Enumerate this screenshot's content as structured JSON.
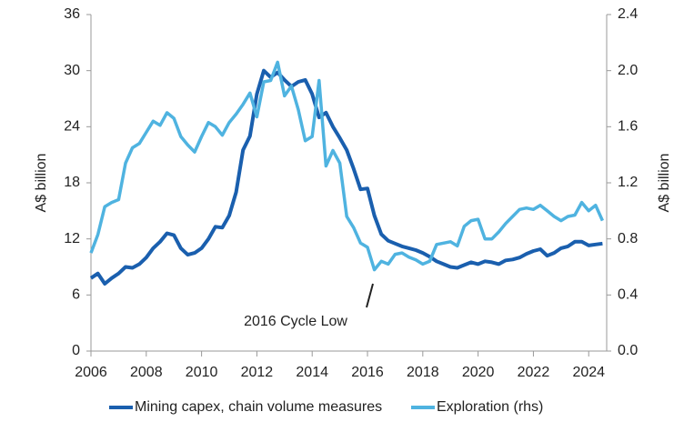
{
  "chart_data": {
    "type": "line",
    "y_label": "A$ billion",
    "y2_label": "A$ billion",
    "annotation": "2016 Cycle Low",
    "x": [
      2006,
      2006.25,
      2006.5,
      2006.75,
      2007,
      2007.25,
      2007.5,
      2007.75,
      2008,
      2008.25,
      2008.5,
      2008.75,
      2009,
      2009.25,
      2009.5,
      2009.75,
      2010,
      2010.25,
      2010.5,
      2010.75,
      2011,
      2011.25,
      2011.5,
      2011.75,
      2012,
      2012.25,
      2012.5,
      2012.75,
      2013,
      2013.25,
      2013.5,
      2013.75,
      2014,
      2014.25,
      2014.5,
      2014.75,
      2015,
      2015.25,
      2015.5,
      2015.75,
      2016,
      2016.25,
      2016.5,
      2016.75,
      2017,
      2017.25,
      2017.5,
      2017.75,
      2018,
      2018.25,
      2018.5,
      2018.75,
      2019,
      2019.25,
      2019.5,
      2019.75,
      2020,
      2020.25,
      2020.5,
      2020.75,
      2021,
      2021.25,
      2021.5,
      2021.75,
      2022,
      2022.25,
      2022.5,
      2022.75,
      2023,
      2023.25,
      2023.5,
      2023.75,
      2024,
      2024.25,
      2024.5
    ],
    "series": [
      {
        "name": "Mining capex, chain volume measures",
        "color": "#1a5fae",
        "values": [
          7.8,
          8.3,
          7.2,
          7.8,
          8.3,
          9.0,
          8.9,
          9.3,
          10.0,
          11.0,
          11.7,
          12.6,
          12.4,
          11.0,
          10.3,
          10.5,
          11.0,
          12.0,
          13.3,
          13.2,
          14.5,
          17.0,
          21.5,
          23.0,
          27.5,
          30.0,
          29.3,
          29.8,
          29.0,
          28.3,
          28.8,
          29.0,
          27.5,
          25.0,
          25.5,
          24.0,
          22.8,
          21.5,
          19.5,
          17.3,
          17.4,
          14.5,
          12.5,
          11.8,
          11.5,
          11.2,
          11.0,
          10.8,
          10.5,
          10.1,
          9.6,
          9.3,
          9.0,
          8.9,
          9.2,
          9.5,
          9.3,
          9.6,
          9.5,
          9.3,
          9.7,
          9.8,
          10.0,
          10.4,
          10.7,
          10.9,
          10.2,
          10.5,
          11.0,
          11.2,
          11.7,
          11.7,
          11.3,
          11.4,
          11.5
        ]
      },
      {
        "name": "Exploration (rhs)",
        "color": "#4fb3e0",
        "axis": "y2",
        "values": [
          0.7,
          0.83,
          1.03,
          1.06,
          1.08,
          1.34,
          1.45,
          1.48,
          1.56,
          1.64,
          1.61,
          1.7,
          1.66,
          1.53,
          1.47,
          1.42,
          1.53,
          1.63,
          1.6,
          1.54,
          1.63,
          1.69,
          1.76,
          1.84,
          1.67,
          1.92,
          1.93,
          2.06,
          1.82,
          1.89,
          1.72,
          1.5,
          1.53,
          1.93,
          1.32,
          1.43,
          1.34,
          0.96,
          0.88,
          0.77,
          0.74,
          0.58,
          0.64,
          0.62,
          0.69,
          0.7,
          0.67,
          0.65,
          0.62,
          0.64,
          0.76,
          0.77,
          0.78,
          0.75,
          0.89,
          0.93,
          0.94,
          0.8,
          0.8,
          0.85,
          0.91,
          0.96,
          1.01,
          1.02,
          1.01,
          1.04,
          1.0,
          0.96,
          0.93,
          0.96,
          0.97,
          1.06,
          1.0,
          1.04,
          0.93
        ]
      }
    ],
    "xlim": [
      2006,
      2024.65
    ],
    "xticks": [
      2006,
      2008,
      2010,
      2012,
      2014,
      2016,
      2018,
      2020,
      2022,
      2024
    ],
    "ylim": [
      0,
      36
    ],
    "yticks": [
      0,
      6,
      12,
      18,
      24,
      30,
      36
    ],
    "y2lim": [
      0,
      2.4
    ],
    "y2ticks": [
      {
        "value": 0,
        "label": "0.0"
      },
      0.4,
      0.8,
      1.2,
      1.6,
      {
        "value": 2,
        "label": "2.0"
      },
      2.4
    ],
    "legend": "bottom"
  }
}
